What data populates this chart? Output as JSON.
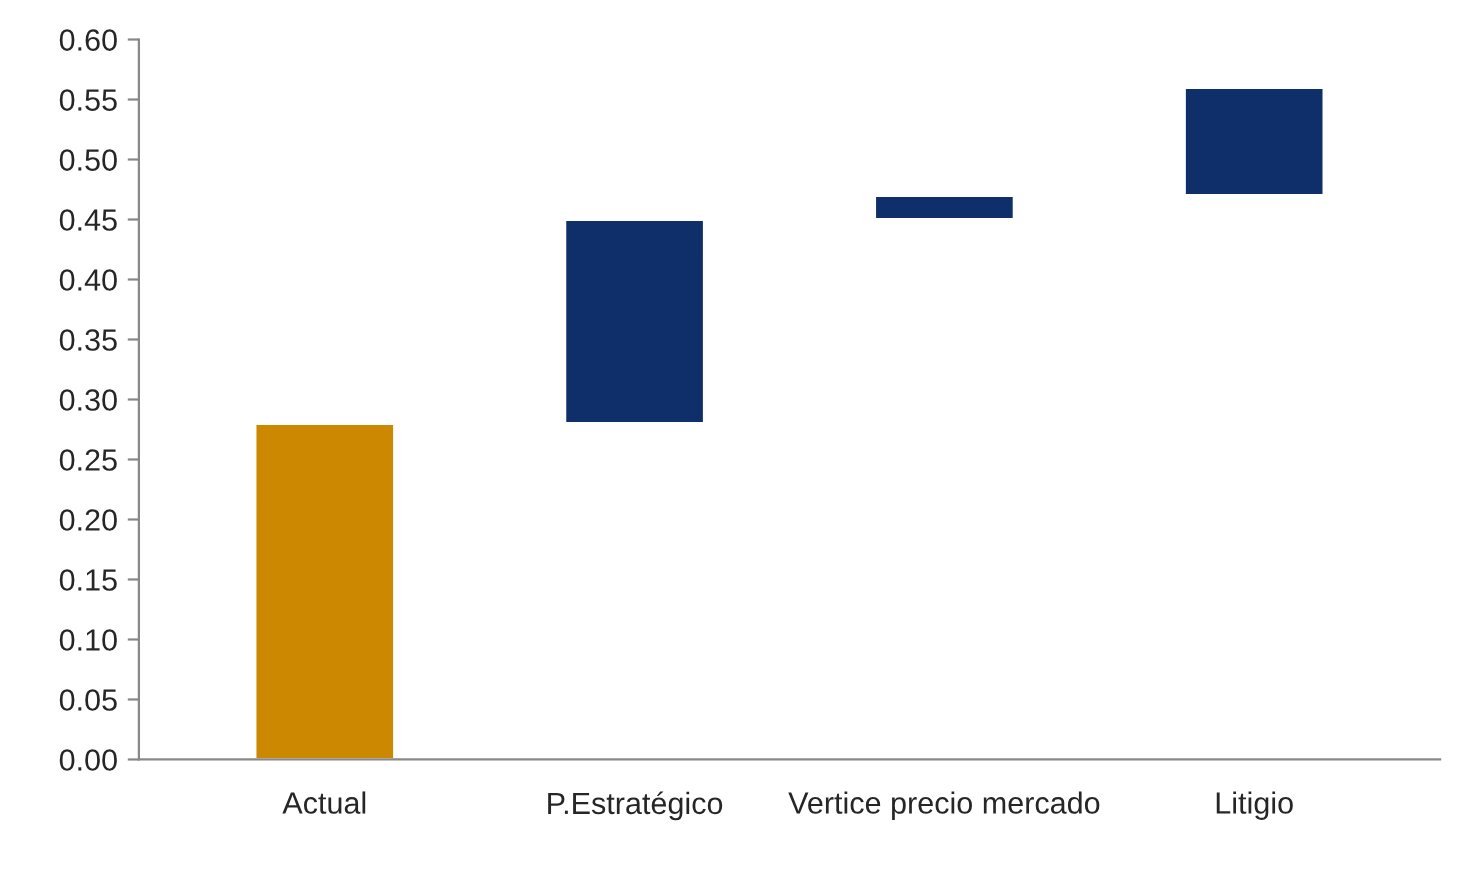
{
  "chart_data": {
    "type": "bar",
    "categories": [
      "Actual",
      "P.Estratégico",
      "Vertice precio mercado",
      "Litigio"
    ],
    "values": [
      0.28,
      0.17,
      0.02,
      0.09
    ],
    "base": [
      0,
      0.28,
      0.45,
      0.47
    ],
    "colors": [
      "#cc8800",
      "#0f2f6b",
      "#0f2f6b",
      "#0f2f6b"
    ],
    "ylim": [
      0,
      0.6
    ],
    "yticks": [
      {
        "value": 0,
        "label": "0.00"
      },
      {
        "value": 0.05,
        "label": "0.05"
      },
      {
        "value": 0.1,
        "label": "0.10"
      },
      {
        "value": 0.15,
        "label": "0.15"
      },
      {
        "value": 0.2,
        "label": "0.20"
      },
      {
        "value": 0.25,
        "label": "0.25"
      },
      {
        "value": 0.3,
        "label": "0.30"
      },
      {
        "value": 0.35,
        "label": "0.35"
      },
      {
        "value": 0.4,
        "label": "0.40"
      },
      {
        "value": 0.45,
        "label": "0.45"
      },
      {
        "value": 0.5,
        "label": "0.50"
      },
      {
        "value": 0.55,
        "label": "0.55"
      },
      {
        "value": 0.6,
        "label": "0.60"
      }
    ],
    "grid": false
  }
}
